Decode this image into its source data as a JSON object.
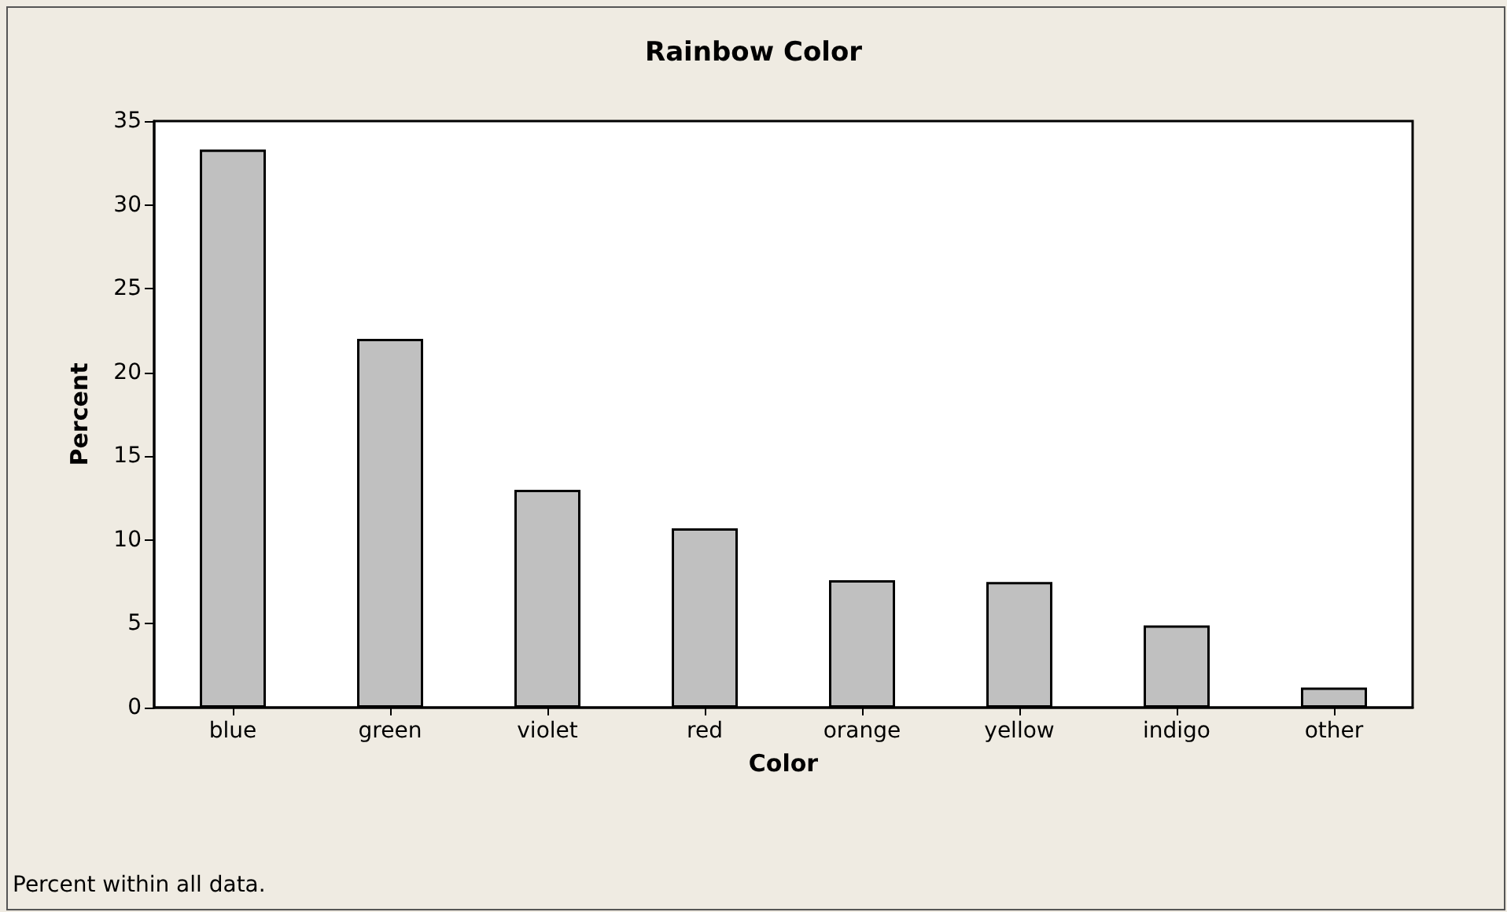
{
  "chart_data": {
    "type": "bar",
    "title": "Rainbow Color",
    "xlabel": "Color",
    "ylabel": "Percent",
    "categories": [
      "blue",
      "green",
      "violet",
      "red",
      "orange",
      "yellow",
      "indigo",
      "other"
    ],
    "values": [
      33.3,
      22.0,
      13.0,
      10.7,
      7.6,
      7.5,
      4.9,
      1.2
    ],
    "color": "#c0c0c0",
    "ylim": [
      0,
      35
    ],
    "yticks": [
      0,
      5,
      10,
      15,
      20,
      25,
      30,
      35
    ],
    "grid": false,
    "annotations": [
      "Percent within all data."
    ]
  }
}
